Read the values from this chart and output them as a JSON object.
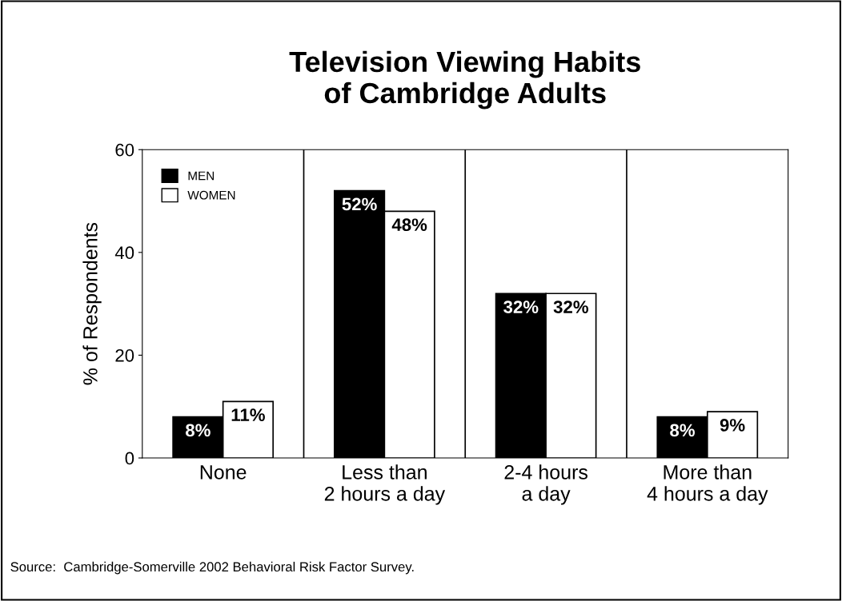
{
  "chart_data": {
    "type": "bar",
    "title": "Television Viewing Habits\nof Cambridge Adults",
    "ylabel": "% of Respondents",
    "categories": [
      "None",
      "Less than\n2 hours a day",
      "2-4 hours\na day",
      "More than\n4 hours a day"
    ],
    "series": [
      {
        "name": "MEN",
        "color": "#000000",
        "values": [
          8,
          52,
          32,
          8
        ],
        "value_labels": [
          "8%",
          "52%",
          "32%",
          "8%"
        ]
      },
      {
        "name": "WOMEN",
        "color": "#ffffff",
        "values": [
          11,
          48,
          32,
          9
        ],
        "value_labels": [
          "11%",
          "48%",
          "32%",
          "9%"
        ]
      }
    ],
    "ylim": [
      0,
      60
    ],
    "yticks": [
      0,
      20,
      40,
      60
    ],
    "grid": "x",
    "legend": "top left",
    "annotations": [
      "Source:  Cambridge-Somerville 2002 Behavioral Risk Factor Survey."
    ]
  }
}
